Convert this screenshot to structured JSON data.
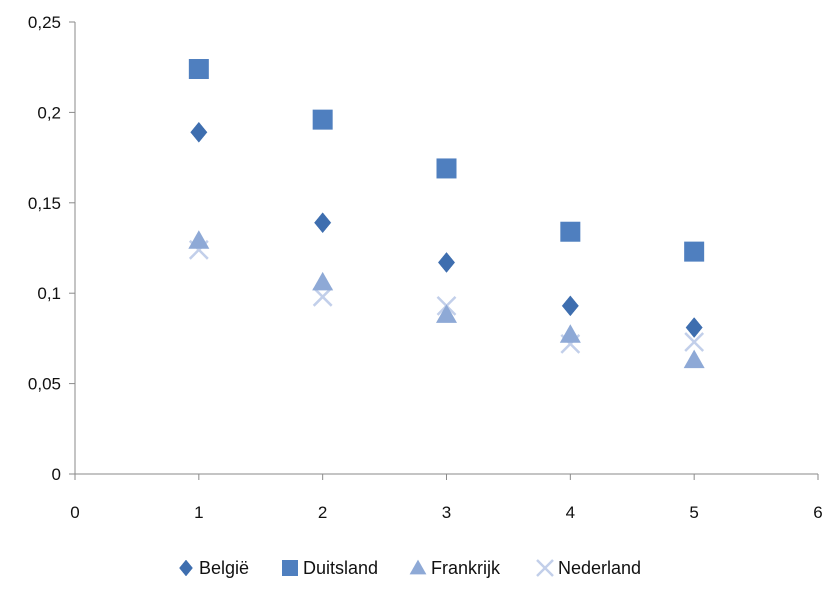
{
  "chart_data": {
    "type": "scatter",
    "title": "",
    "xlabel": "",
    "ylabel": "",
    "xlim": [
      0,
      6
    ],
    "ylim": [
      0,
      0.25
    ],
    "x_ticks": [
      0,
      1,
      2,
      3,
      4,
      5,
      6
    ],
    "y_ticks": [
      0,
      0.05,
      0.1,
      0.15,
      0.2,
      0.25
    ],
    "x_tick_labels": [
      "0",
      "1",
      "2",
      "3",
      "4",
      "5",
      "6"
    ],
    "y_tick_labels": [
      "0",
      "0,05",
      "0,1",
      "0,15",
      "0,2",
      "0,25"
    ],
    "grid": false,
    "legend_position": "bottom",
    "series": [
      {
        "name": "België",
        "marker": "diamond",
        "color": "#3E6EAF",
        "x": [
          1,
          2,
          3,
          4,
          5
        ],
        "y": [
          0.189,
          0.139,
          0.117,
          0.093,
          0.081
        ]
      },
      {
        "name": "Duitsland",
        "marker": "square",
        "color": "#4F7FBF",
        "x": [
          1,
          2,
          3,
          4,
          5
        ],
        "y": [
          0.224,
          0.196,
          0.169,
          0.134,
          0.123
        ]
      },
      {
        "name": "Frankrijk",
        "marker": "triangle",
        "color": "#8EA9D6",
        "x": [
          1,
          2,
          3,
          4,
          5
        ],
        "y": [
          0.129,
          0.106,
          0.088,
          0.077,
          0.063
        ]
      },
      {
        "name": "Nederland",
        "marker": "x",
        "color": "#C2CFEA",
        "x": [
          1,
          2,
          3,
          4,
          5
        ],
        "y": [
          0.124,
          0.098,
          0.093,
          0.072,
          0.073
        ]
      }
    ]
  }
}
